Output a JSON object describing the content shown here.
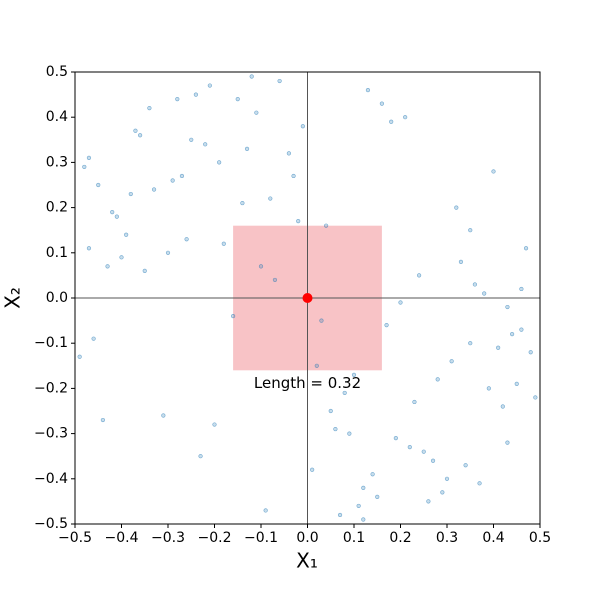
{
  "chart_data": {
    "type": "scatter",
    "x_label": "X₁",
    "y_label": "X₂",
    "xlim": [
      -0.5,
      0.5
    ],
    "ylim": [
      -0.5,
      0.5
    ],
    "xticks": [
      {
        "value": -0.5,
        "label": "−0.5"
      },
      {
        "value": -0.4,
        "label": "−0.4"
      },
      {
        "value": -0.3,
        "label": "−0.3"
      },
      {
        "value": -0.2,
        "label": "−0.2"
      },
      {
        "value": -0.1,
        "label": "−0.1"
      },
      {
        "value": 0,
        "label": "0.0"
      },
      0.1,
      0.2,
      0.3,
      0.4,
      0.5
    ],
    "yticks": [
      {
        "value": -0.5,
        "label": "−0.5"
      },
      {
        "value": -0.4,
        "label": "−0.4"
      },
      {
        "value": -0.3,
        "label": "−0.3"
      },
      {
        "value": -0.2,
        "label": "−0.2"
      },
      {
        "value": -0.1,
        "label": "−0.1"
      },
      {
        "value": 0,
        "label": "0.0"
      },
      0.1,
      0.2,
      0.3,
      0.4,
      0.5
    ],
    "reference_lines": {
      "x": 0,
      "y": 0,
      "color": "#555555"
    },
    "square": {
      "center_x": 0,
      "center_y": 0,
      "length": 0.32,
      "color": "#f4a3a8",
      "annotation": "Length = 0.32"
    },
    "center_point": {
      "x": 0,
      "y": 0,
      "color": "#ff0000"
    },
    "series": [
      {
        "color": "#1f77b4",
        "x": [
          -0.47,
          0.12,
          0.33,
          -0.21,
          0.45,
          -0.08,
          0.27,
          -0.39,
          0.03,
          0.18,
          -0.44,
          0.36,
          -0.15,
          0.41,
          -0.29,
          0.07,
          -0.02,
          0.22,
          -0.35,
          0.49,
          -0.11,
          0.31,
          -0.48,
          0.14,
          0.38,
          -0.25,
          0.05,
          -0.42,
          0.26,
          -0.18,
          0.46,
          -0.06,
          0.19,
          -0.33,
          0.1,
          -0.4,
          0.29,
          -0.13,
          0.43,
          -0.27,
          0.01,
          0.35,
          -0.46,
          0.16,
          -0.2,
          0.24,
          -0.37,
          0.08,
          0.47,
          -0.09,
          0.32,
          -0.23,
          0.13,
          -0.49,
          0.4,
          -0.16,
          0.21,
          -0.31,
          0.04,
          0.37,
          -0.43,
          0.28,
          -0.04,
          0.15,
          -0.38,
          0.44,
          -0.12,
          0.09,
          -0.26,
          0.34,
          -0.45,
          0.2,
          -0.01,
          0.42,
          -0.3,
          0.11,
          -0.19,
          0.48,
          -0.34,
          0.25,
          -0.07,
          0.39,
          -0.24,
          0.06,
          -0.41,
          0.3,
          -0.14,
          0.17,
          -0.36,
          0.02,
          0.46,
          -0.22,
          0.23,
          -0.47,
          0.12,
          -0.03,
          0.35,
          -0.28,
          0.43,
          -0.1
        ],
        "y": [
          0.31,
          -0.42,
          0.08,
          0.47,
          -0.19,
          0.22,
          -0.36,
          0.14,
          -0.05,
          0.39,
          -0.27,
          0.03,
          0.44,
          -0.11,
          0.26,
          -0.48,
          0.17,
          -0.33,
          0.06,
          -0.22,
          0.41,
          -0.14,
          0.29,
          -0.39,
          0.01,
          0.35,
          -0.25,
          0.19,
          -0.45,
          0.12,
          -0.07,
          0.48,
          -0.31,
          0.24,
          -0.17,
          0.09,
          -0.43,
          0.33,
          -0.02,
          0.27,
          -0.38,
          0.15,
          -0.09,
          0.43,
          -0.28,
          0.05,
          0.37,
          -0.21,
          0.11,
          -0.47,
          0.2,
          -0.35,
          0.46,
          -0.13,
          0.28,
          -0.04,
          0.4,
          -0.26,
          0.16,
          -0.41,
          0.07,
          -0.18,
          0.32,
          -0.44,
          0.23,
          -0.08,
          0.49,
          -0.3,
          0.13,
          -0.37,
          0.25,
          -0.01,
          0.38,
          -0.24,
          0.1,
          -0.46,
          0.3,
          -0.12,
          0.42,
          -0.34,
          0.04,
          -0.2,
          0.45,
          -0.29,
          0.18,
          -0.4,
          0.21,
          -0.06,
          0.36,
          -0.15,
          0.02,
          0.34,
          -0.23,
          0.11,
          -0.49,
          0.27,
          -0.1,
          0.44,
          -0.32,
          0.07
        ]
      }
    ]
  }
}
